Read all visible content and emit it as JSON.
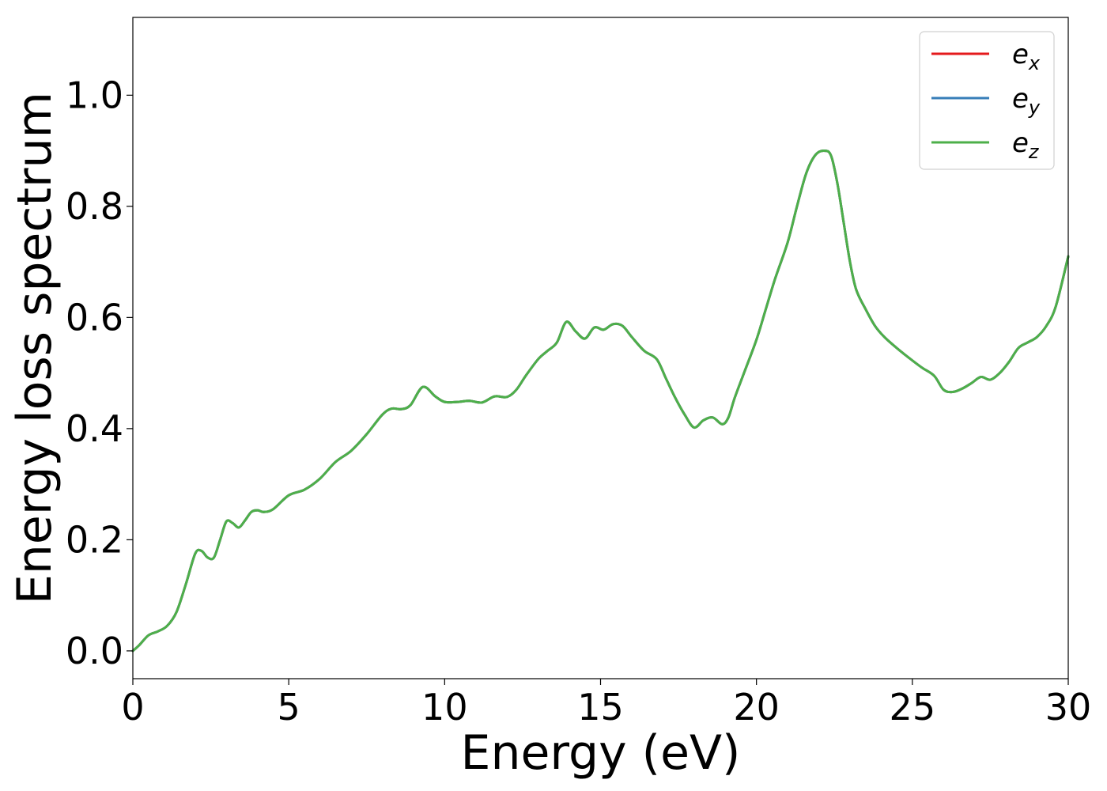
{
  "chart_data": {
    "type": "line",
    "title": "",
    "xlabel": "Energy (eV)",
    "ylabel": "Energy loss spectrum",
    "xlim": [
      0,
      30
    ],
    "ylim": [
      -0.05,
      1.14
    ],
    "xticks": [
      0,
      5,
      10,
      15,
      20,
      25,
      30
    ],
    "xtick_labels": [
      "0",
      "5",
      "10",
      "15",
      "20",
      "25",
      "30"
    ],
    "yticks": [
      0.0,
      0.2,
      0.4,
      0.6,
      0.8,
      1.0
    ],
    "ytick_labels": [
      "0.0",
      "0.2",
      "0.4",
      "0.6",
      "0.8",
      "1.0"
    ],
    "grid": false,
    "legend_position": "top-right",
    "x": [
      0,
      0.2,
      0.5,
      0.8,
      1.1,
      1.4,
      1.7,
      2.0,
      2.2,
      2.4,
      2.6,
      2.8,
      3.0,
      3.2,
      3.4,
      3.6,
      3.8,
      4.0,
      4.2,
      4.5,
      5.0,
      5.5,
      6.0,
      6.5,
      7.0,
      7.5,
      8.0,
      8.3,
      8.6,
      8.9,
      9.3,
      9.7,
      10.0,
      10.4,
      10.8,
      11.2,
      11.6,
      12.0,
      12.3,
      12.6,
      13.0,
      13.3,
      13.6,
      13.9,
      14.2,
      14.5,
      14.8,
      15.1,
      15.4,
      15.7,
      16.0,
      16.4,
      16.8,
      17.1,
      17.4,
      17.7,
      18.0,
      18.3,
      18.6,
      18.9,
      19.1,
      19.3,
      19.6,
      20.0,
      20.3,
      20.6,
      21.0,
      21.3,
      21.6,
      21.9,
      22.2,
      22.4,
      22.6,
      22.8,
      23.0,
      23.2,
      23.5,
      23.8,
      24.1,
      24.5,
      24.9,
      25.3,
      25.7,
      26.0,
      26.3,
      26.6,
      26.9,
      27.2,
      27.5,
      27.8,
      28.1,
      28.4,
      28.7,
      29.0,
      29.3,
      29.6,
      30.0
    ],
    "series": [
      {
        "name": "e_x",
        "color": "#e41a1c",
        "values": [
          0.0,
          0.01,
          0.028,
          0.035,
          0.045,
          0.07,
          0.12,
          0.175,
          0.18,
          0.168,
          0.168,
          0.2,
          0.233,
          0.23,
          0.222,
          0.235,
          0.25,
          0.253,
          0.25,
          0.255,
          0.28,
          0.29,
          0.31,
          0.34,
          0.36,
          0.39,
          0.425,
          0.436,
          0.435,
          0.442,
          0.475,
          0.458,
          0.448,
          0.448,
          0.45,
          0.447,
          0.458,
          0.457,
          0.47,
          0.495,
          0.525,
          0.54,
          0.555,
          0.592,
          0.575,
          0.562,
          0.582,
          0.578,
          0.588,
          0.585,
          0.565,
          0.54,
          0.525,
          0.49,
          0.455,
          0.425,
          0.402,
          0.415,
          0.42,
          0.408,
          0.42,
          0.455,
          0.5,
          0.56,
          0.615,
          0.67,
          0.735,
          0.8,
          0.86,
          0.893,
          0.9,
          0.89,
          0.84,
          0.77,
          0.7,
          0.65,
          0.615,
          0.585,
          0.565,
          0.545,
          0.527,
          0.51,
          0.495,
          0.47,
          0.466,
          0.472,
          0.482,
          0.493,
          0.488,
          0.5,
          0.52,
          0.545,
          0.555,
          0.565,
          0.585,
          0.62,
          0.71
        ]
      },
      {
        "name": "e_y",
        "color": "#377eb8",
        "values": [
          0.0,
          0.01,
          0.028,
          0.035,
          0.045,
          0.07,
          0.12,
          0.175,
          0.18,
          0.168,
          0.168,
          0.2,
          0.233,
          0.23,
          0.222,
          0.235,
          0.25,
          0.253,
          0.25,
          0.255,
          0.28,
          0.29,
          0.31,
          0.34,
          0.36,
          0.39,
          0.425,
          0.436,
          0.435,
          0.442,
          0.475,
          0.458,
          0.448,
          0.448,
          0.45,
          0.447,
          0.458,
          0.457,
          0.47,
          0.495,
          0.525,
          0.54,
          0.555,
          0.592,
          0.575,
          0.562,
          0.582,
          0.578,
          0.588,
          0.585,
          0.565,
          0.54,
          0.525,
          0.49,
          0.455,
          0.425,
          0.402,
          0.415,
          0.42,
          0.408,
          0.42,
          0.455,
          0.5,
          0.56,
          0.615,
          0.67,
          0.735,
          0.8,
          0.86,
          0.893,
          0.9,
          0.89,
          0.84,
          0.77,
          0.7,
          0.65,
          0.615,
          0.585,
          0.565,
          0.545,
          0.527,
          0.51,
          0.495,
          0.47,
          0.466,
          0.472,
          0.482,
          0.493,
          0.488,
          0.5,
          0.52,
          0.545,
          0.555,
          0.565,
          0.585,
          0.62,
          0.71
        ]
      },
      {
        "name": "e_z",
        "color": "#4daf4a",
        "values": [
          0.0,
          0.01,
          0.028,
          0.035,
          0.045,
          0.07,
          0.12,
          0.175,
          0.18,
          0.168,
          0.168,
          0.2,
          0.233,
          0.23,
          0.222,
          0.235,
          0.25,
          0.253,
          0.25,
          0.255,
          0.28,
          0.29,
          0.31,
          0.34,
          0.36,
          0.39,
          0.425,
          0.436,
          0.435,
          0.442,
          0.475,
          0.458,
          0.448,
          0.448,
          0.45,
          0.447,
          0.458,
          0.457,
          0.47,
          0.495,
          0.525,
          0.54,
          0.555,
          0.592,
          0.575,
          0.562,
          0.582,
          0.578,
          0.588,
          0.585,
          0.565,
          0.54,
          0.525,
          0.49,
          0.455,
          0.425,
          0.402,
          0.415,
          0.42,
          0.408,
          0.42,
          0.455,
          0.5,
          0.56,
          0.615,
          0.67,
          0.735,
          0.8,
          0.86,
          0.893,
          0.9,
          0.89,
          0.84,
          0.77,
          0.7,
          0.65,
          0.615,
          0.585,
          0.565,
          0.545,
          0.527,
          0.51,
          0.495,
          0.47,
          0.466,
          0.472,
          0.482,
          0.493,
          0.488,
          0.5,
          0.52,
          0.545,
          0.555,
          0.565,
          0.585,
          0.62,
          0.71
        ]
      }
    ],
    "legend": [
      {
        "base": "e",
        "sub": "x",
        "color": "#e41a1c"
      },
      {
        "base": "e",
        "sub": "y",
        "color": "#377eb8"
      },
      {
        "base": "e",
        "sub": "z",
        "color": "#4daf4a"
      }
    ]
  }
}
